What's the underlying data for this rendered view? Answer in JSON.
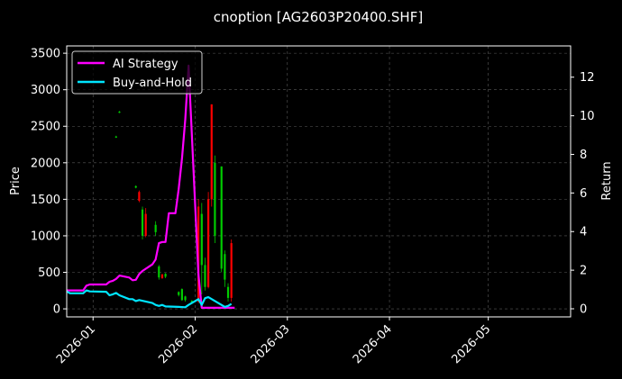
{
  "chart_data": {
    "type": "line",
    "title": "cnoption [AG2603P20400.SHF]",
    "ylabel": "Price",
    "y2label": "Return",
    "ylim": [
      -110,
      3600
    ],
    "y2lim": [
      -0.42,
      13.62
    ],
    "yticks": [
      0,
      500,
      1000,
      1500,
      2000,
      2500,
      3000,
      3500
    ],
    "y2ticks": [
      0,
      2,
      4,
      6,
      8,
      10,
      12
    ],
    "x_range": [
      "2025-12-24",
      "2026-05-26"
    ],
    "x_ticks": [
      "2026-01",
      "2026-02",
      "2026-03",
      "2026-04",
      "2026-05"
    ],
    "grid": true,
    "legend": "top-left",
    "colors": {
      "background": "#000000",
      "up": "#ff0000",
      "down": "#00cc00",
      "ai": "#ff00ff",
      "bh": "#00e5ff",
      "text": "#ffffff",
      "grid": "#5a5a5a"
    },
    "series": [
      {
        "name": "AI Strategy",
        "axis": "right",
        "color": "#ff00ff",
        "points": [
          [
            "2025-12-24",
            0.95
          ],
          [
            "2025-12-26",
            0.95
          ],
          [
            "2025-12-29",
            0.95
          ],
          [
            "2025-12-30",
            1.2
          ],
          [
            "2025-12-31",
            1.26
          ],
          [
            "2026-01-05",
            1.26
          ],
          [
            "2026-01-06",
            1.4
          ],
          [
            "2026-01-07",
            1.45
          ],
          [
            "2026-01-08",
            1.55
          ],
          [
            "2026-01-09",
            1.72
          ],
          [
            "2026-01-12",
            1.62
          ],
          [
            "2026-01-13",
            1.48
          ],
          [
            "2026-01-14",
            1.5
          ],
          [
            "2026-01-15",
            1.8
          ],
          [
            "2026-01-16",
            1.96
          ],
          [
            "2026-01-19",
            2.3
          ],
          [
            "2026-01-20",
            2.55
          ],
          [
            "2026-01-21",
            3.4
          ],
          [
            "2026-01-22",
            3.46
          ],
          [
            "2026-01-23",
            3.46
          ],
          [
            "2026-01-24",
            4.95
          ],
          [
            "2026-01-26",
            4.95
          ],
          [
            "2026-01-27",
            6.2
          ],
          [
            "2026-01-28",
            7.8
          ],
          [
            "2026-01-29",
            9.8
          ],
          [
            "2026-01-30",
            12.6
          ],
          [
            "2026-02-02",
            1.8
          ],
          [
            "2026-02-03",
            0.05
          ],
          [
            "2026-02-04",
            0.05
          ],
          [
            "2026-02-13",
            0.05
          ]
        ]
      },
      {
        "name": "Buy-and-Hold",
        "axis": "right",
        "color": "#00e5ff",
        "points": [
          [
            "2025-12-24",
            0.9
          ],
          [
            "2025-12-25",
            0.8
          ],
          [
            "2025-12-29",
            0.8
          ],
          [
            "2025-12-30",
            0.95
          ],
          [
            "2025-12-31",
            0.9
          ],
          [
            "2026-01-05",
            0.88
          ],
          [
            "2026-01-06",
            0.7
          ],
          [
            "2026-01-07",
            0.75
          ],
          [
            "2026-01-08",
            0.82
          ],
          [
            "2026-01-09",
            0.7
          ],
          [
            "2026-01-12",
            0.5
          ],
          [
            "2026-01-13",
            0.5
          ],
          [
            "2026-01-14",
            0.4
          ],
          [
            "2026-01-15",
            0.45
          ],
          [
            "2026-01-19",
            0.3
          ],
          [
            "2026-01-20",
            0.2
          ],
          [
            "2026-01-21",
            0.15
          ],
          [
            "2026-01-22",
            0.2
          ],
          [
            "2026-01-23",
            0.12
          ],
          [
            "2026-01-27",
            0.1
          ],
          [
            "2026-01-29",
            0.08
          ],
          [
            "2026-01-30",
            0.2
          ],
          [
            "2026-02-02",
            0.5
          ],
          [
            "2026-02-03",
            0.2
          ],
          [
            "2026-02-04",
            0.55
          ],
          [
            "2026-02-05",
            0.6
          ],
          [
            "2026-02-09",
            0.2
          ],
          [
            "2026-02-10",
            0.1
          ],
          [
            "2026-02-11",
            0.15
          ],
          [
            "2026-02-12",
            0.25
          ]
        ]
      }
    ],
    "candles": [
      {
        "date": "2026-01-09",
        "open": 2700,
        "close": 2690,
        "high": 2710,
        "low": 2680
      },
      {
        "date": "2026-01-08",
        "open": 2360,
        "close": 2350,
        "high": 2370,
        "low": 2340
      },
      {
        "date": "2026-01-14",
        "open": 1680,
        "close": 1660,
        "high": 1690,
        "low": 1650
      },
      {
        "date": "2026-01-15",
        "open": 1480,
        "close": 1600,
        "high": 1620,
        "low": 1460
      },
      {
        "date": "2026-01-16",
        "open": 1360,
        "close": 1000,
        "high": 1400,
        "low": 950
      },
      {
        "date": "2026-01-17",
        "open": 1000,
        "close": 1300,
        "high": 1380,
        "low": 980
      },
      {
        "date": "2026-01-20",
        "open": 1150,
        "close": 1050,
        "high": 1200,
        "low": 1000
      },
      {
        "date": "2026-01-21",
        "open": 580,
        "close": 430,
        "high": 600,
        "low": 400
      },
      {
        "date": "2026-01-22",
        "open": 420,
        "close": 470,
        "high": 480,
        "low": 410
      },
      {
        "date": "2026-01-23",
        "open": 480,
        "close": 440,
        "high": 490,
        "low": 420
      },
      {
        "date": "2026-01-27",
        "open": 230,
        "close": 190,
        "high": 240,
        "low": 170
      },
      {
        "date": "2026-01-28",
        "open": 270,
        "close": 120,
        "high": 280,
        "low": 110
      },
      {
        "date": "2026-01-29",
        "open": 170,
        "close": 120,
        "high": 180,
        "low": 100
      },
      {
        "date": "2026-01-31",
        "open": 110,
        "close": 80,
        "high": 120,
        "low": 70
      },
      {
        "date": "2026-02-02",
        "open": 100,
        "close": 1400,
        "high": 1500,
        "low": 80
      },
      {
        "date": "2026-02-03",
        "open": 1300,
        "close": 600,
        "high": 1450,
        "low": 200
      },
      {
        "date": "2026-02-04",
        "open": 600,
        "close": 300,
        "high": 700,
        "low": 250
      },
      {
        "date": "2026-02-05",
        "open": 300,
        "close": 1500,
        "high": 1600,
        "low": 280
      },
      {
        "date": "2026-02-06",
        "open": 1500,
        "close": 2800,
        "high": 2800,
        "low": 1400
      },
      {
        "date": "2026-02-07",
        "open": 2000,
        "close": 1000,
        "high": 2100,
        "low": 900
      },
      {
        "date": "2026-02-09",
        "open": 1950,
        "close": 550,
        "high": 1950,
        "low": 500
      },
      {
        "date": "2026-02-10",
        "open": 750,
        "close": 400,
        "high": 800,
        "low": 300
      },
      {
        "date": "2026-02-11",
        "open": 300,
        "close": 150,
        "high": 350,
        "low": 100
      },
      {
        "date": "2026-02-12",
        "open": 150,
        "close": 900,
        "high": 950,
        "low": 100
      }
    ]
  }
}
